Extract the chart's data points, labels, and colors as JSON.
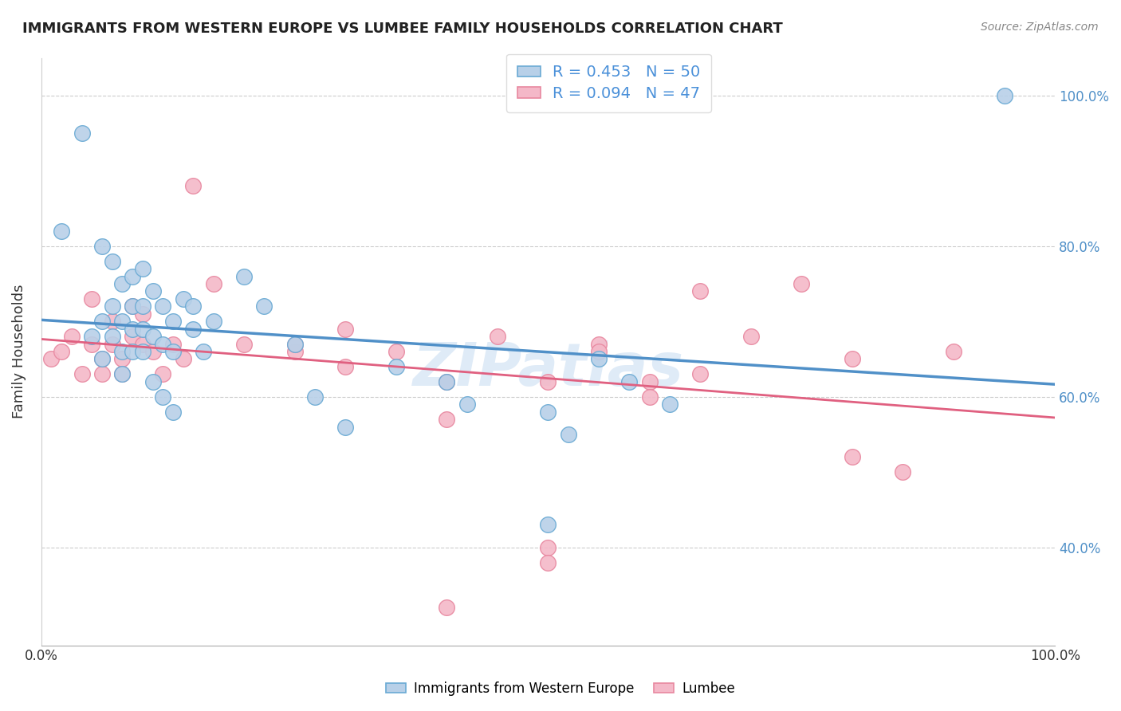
{
  "title": "IMMIGRANTS FROM WESTERN EUROPE VS LUMBEE FAMILY HOUSEHOLDS CORRELATION CHART",
  "source": "Source: ZipAtlas.com",
  "ylabel": "Family Households",
  "watermark": "ZIPatlas",
  "blue_R": 0.453,
  "blue_N": 50,
  "pink_R": 0.094,
  "pink_N": 47,
  "blue_color": "#b8d0e8",
  "blue_edge_color": "#6aaad4",
  "blue_line_color": "#5090c8",
  "pink_color": "#f4b8c8",
  "pink_edge_color": "#e888a0",
  "pink_line_color": "#e06080",
  "legend_label_blue": "Immigrants from Western Europe",
  "legend_label_pink": "Lumbee",
  "blue_x": [
    0.02,
    0.04,
    0.05,
    0.06,
    0.06,
    0.07,
    0.07,
    0.08,
    0.08,
    0.08,
    0.09,
    0.09,
    0.09,
    0.1,
    0.1,
    0.1,
    0.11,
    0.11,
    0.12,
    0.12,
    0.13,
    0.13,
    0.14,
    0.15,
    0.15,
    0.16,
    0.17,
    0.2,
    0.22,
    0.25,
    0.27,
    0.3,
    0.35,
    0.4,
    0.42,
    0.5,
    0.52,
    0.55,
    0.58,
    0.62,
    0.06,
    0.07,
    0.08,
    0.09,
    0.1,
    0.11,
    0.12,
    0.13,
    0.95,
    0.5
  ],
  "blue_y": [
    0.82,
    0.95,
    0.68,
    0.7,
    0.65,
    0.72,
    0.68,
    0.7,
    0.66,
    0.63,
    0.66,
    0.69,
    0.72,
    0.66,
    0.69,
    0.72,
    0.68,
    0.74,
    0.67,
    0.72,
    0.66,
    0.7,
    0.73,
    0.69,
    0.72,
    0.66,
    0.7,
    0.76,
    0.72,
    0.67,
    0.6,
    0.56,
    0.64,
    0.62,
    0.59,
    0.58,
    0.55,
    0.65,
    0.62,
    0.59,
    0.8,
    0.78,
    0.75,
    0.76,
    0.77,
    0.62,
    0.6,
    0.58,
    1.0,
    0.43
  ],
  "pink_x": [
    0.01,
    0.02,
    0.03,
    0.04,
    0.05,
    0.05,
    0.06,
    0.06,
    0.07,
    0.07,
    0.08,
    0.08,
    0.09,
    0.09,
    0.1,
    0.1,
    0.11,
    0.12,
    0.13,
    0.14,
    0.15,
    0.17,
    0.2,
    0.25,
    0.3,
    0.4,
    0.45,
    0.5,
    0.55,
    0.55,
    0.6,
    0.65,
    0.7,
    0.75,
    0.8,
    0.85,
    0.9,
    0.4,
    0.5,
    0.6,
    0.25,
    0.3,
    0.35,
    0.65,
    0.8,
    0.4,
    0.5
  ],
  "pink_y": [
    0.65,
    0.66,
    0.68,
    0.63,
    0.67,
    0.73,
    0.65,
    0.63,
    0.67,
    0.7,
    0.63,
    0.65,
    0.68,
    0.72,
    0.67,
    0.71,
    0.66,
    0.63,
    0.67,
    0.65,
    0.88,
    0.75,
    0.67,
    0.66,
    0.69,
    0.62,
    0.68,
    0.62,
    0.67,
    0.66,
    0.62,
    0.63,
    0.68,
    0.75,
    0.65,
    0.5,
    0.66,
    0.57,
    0.4,
    0.6,
    0.67,
    0.64,
    0.66,
    0.74,
    0.52,
    0.32,
    0.38
  ]
}
